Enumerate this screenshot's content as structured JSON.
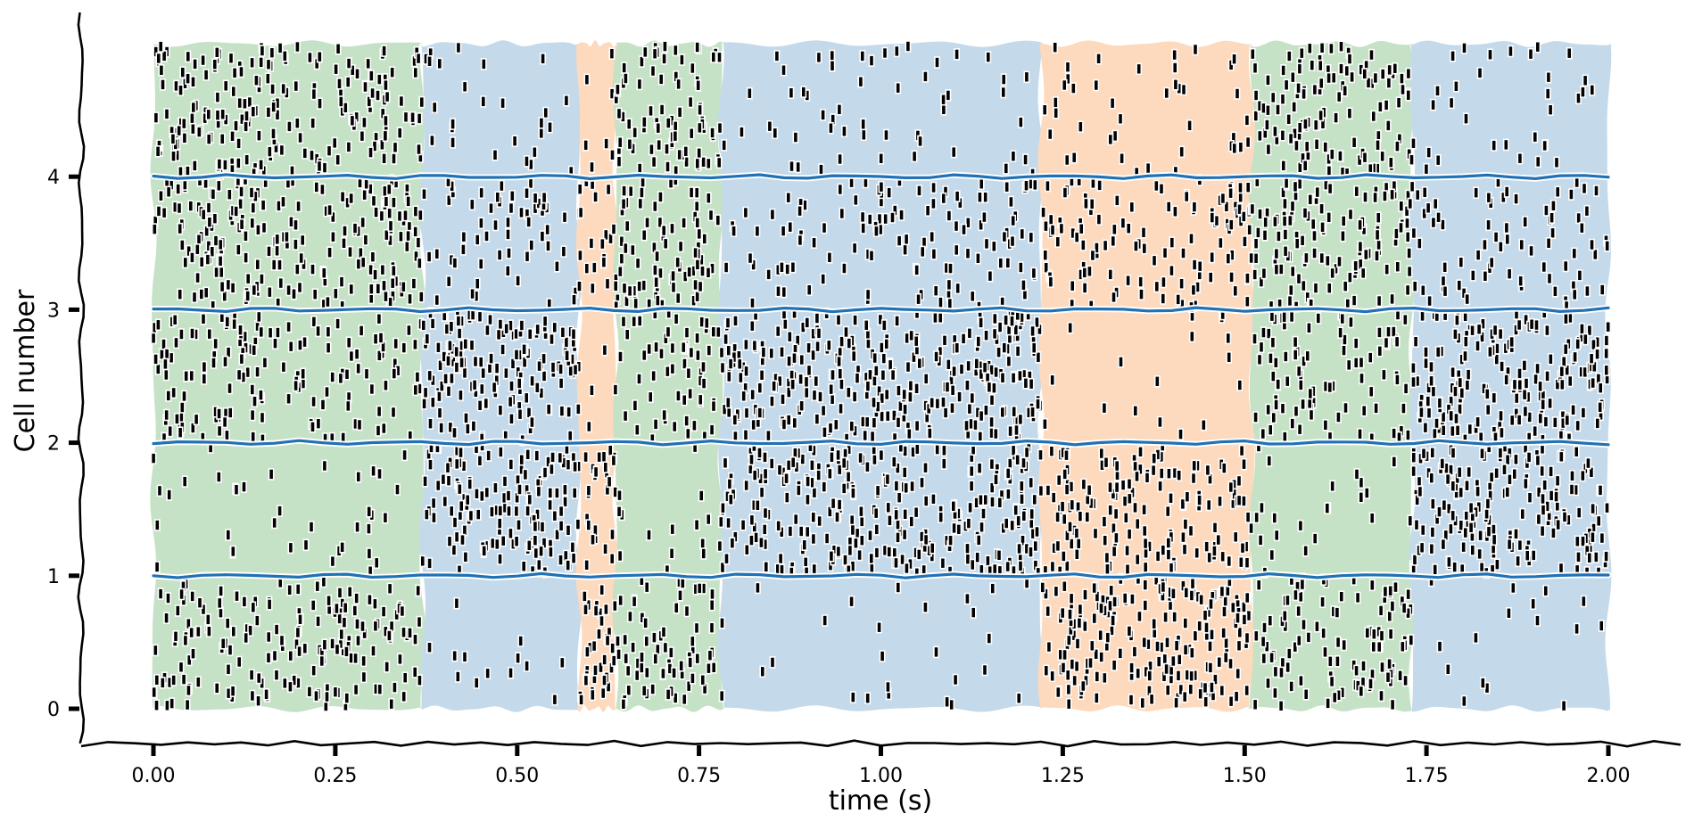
{
  "chart_data": {
    "type": "raster",
    "xlabel": "time (s)",
    "ylabel": "Cell number",
    "xlim": [
      -0.1,
      2.1
    ],
    "ylim": [
      -0.25,
      5.2
    ],
    "x_ticks": [
      0.0,
      0.25,
      0.5,
      0.75,
      1.0,
      1.25,
      1.5,
      1.75,
      2.0
    ],
    "x_tick_labels": [
      "0.00",
      "0.25",
      "0.50",
      "0.75",
      "1.00",
      "1.25",
      "1.50",
      "1.75",
      "2.00"
    ],
    "y_ticks": [
      0,
      1,
      2,
      3,
      4
    ],
    "y_tick_labels": [
      "0",
      "1",
      "2",
      "3",
      "4"
    ],
    "cell_boundaries": [
      1,
      2,
      3,
      4
    ],
    "cell_count": 5,
    "state_colors": {
      "green": "#c6e2c6",
      "blue": "#c4d9ea",
      "orange": "#fdd9bd"
    },
    "boundary_color": "#2171b5",
    "spike_color": "#000000",
    "states": [
      {
        "start": 0.0,
        "end": 0.37,
        "state": "green"
      },
      {
        "start": 0.37,
        "end": 0.585,
        "state": "blue"
      },
      {
        "start": 0.585,
        "end": 0.635,
        "state": "orange"
      },
      {
        "start": 0.635,
        "end": 0.78,
        "state": "green"
      },
      {
        "start": 0.78,
        "end": 1.22,
        "state": "blue"
      },
      {
        "start": 1.22,
        "end": 1.51,
        "state": "orange"
      },
      {
        "start": 1.51,
        "end": 1.73,
        "state": "green"
      },
      {
        "start": 1.73,
        "end": 2.0,
        "state": "blue"
      }
    ],
    "firing_rate_hz": {
      "green": [
        48,
        10,
        42,
        58,
        55
      ],
      "blue": [
        6,
        70,
        72,
        28,
        12
      ],
      "orange": [
        72,
        55,
        6,
        42,
        14
      ]
    },
    "seed": 7
  }
}
